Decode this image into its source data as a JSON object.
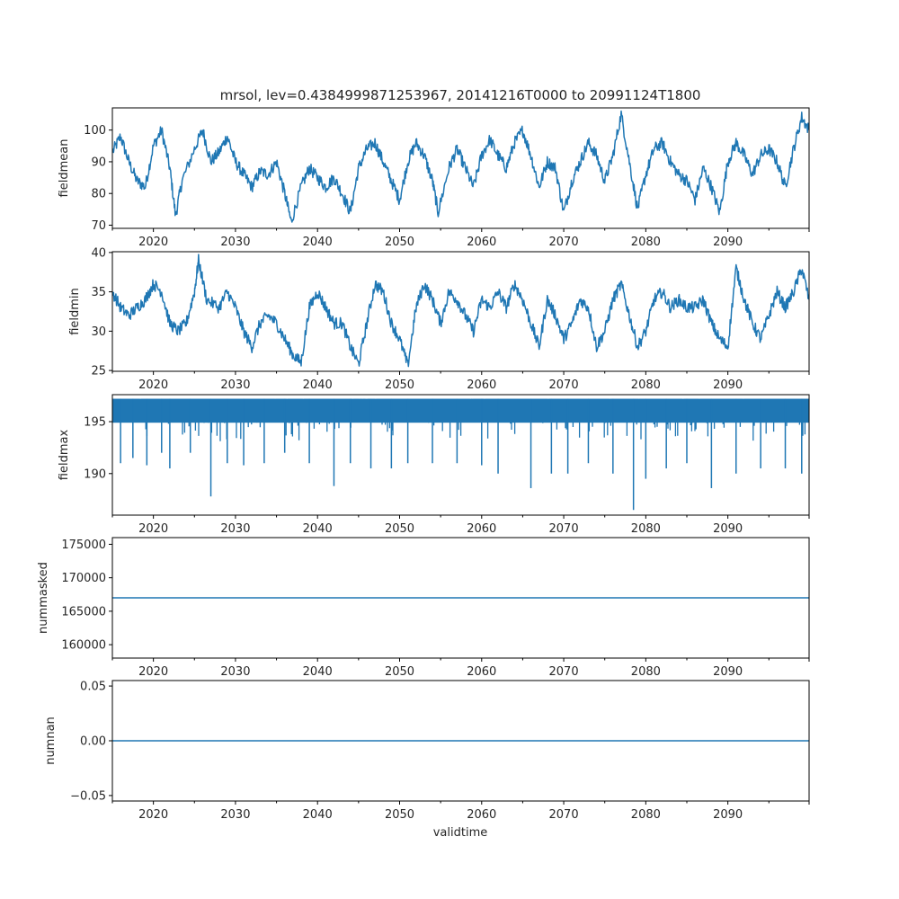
{
  "chart_data": {
    "type": "line",
    "title": "mrsol, lev=0.4384999871253967, 20141216T0000 to 20991124T1800",
    "xlabel": "validtime",
    "x_range": [
      2015.0,
      2099.9
    ],
    "x_ticks": [
      2020,
      2030,
      2040,
      2050,
      2060,
      2070,
      2080,
      2090
    ],
    "x_tick_labels": [
      "2020",
      "2030",
      "2040",
      "2050",
      "2060",
      "2070",
      "2080",
      "2090"
    ],
    "line_color": "#1f77b4",
    "panels": [
      {
        "ylabel": "fieldmean",
        "ylim": [
          69,
          107
        ],
        "yticks": [
          70,
          80,
          90,
          100
        ],
        "ytick_labels": [
          "70",
          "80",
          "90",
          "100"
        ],
        "points": [
          [
            2015.0,
            93
          ],
          [
            2016.0,
            98
          ],
          [
            2017.0,
            90
          ],
          [
            2018.0,
            84
          ],
          [
            2019.0,
            82
          ],
          [
            2020.0,
            95
          ],
          [
            2021.0,
            100
          ],
          [
            2022.0,
            88
          ],
          [
            2022.7,
            73
          ],
          [
            2023.5,
            84
          ],
          [
            2025.0,
            94
          ],
          [
            2026.0,
            100
          ],
          [
            2027.0,
            90
          ],
          [
            2028.0,
            93
          ],
          [
            2029.0,
            98
          ],
          [
            2030.0,
            90
          ],
          [
            2031.0,
            86
          ],
          [
            2032.0,
            82
          ],
          [
            2033.0,
            87
          ],
          [
            2034.0,
            86
          ],
          [
            2035.0,
            90
          ],
          [
            2036.0,
            80
          ],
          [
            2036.8,
            71
          ],
          [
            2038.0,
            82
          ],
          [
            2039.0,
            88
          ],
          [
            2040.0,
            85
          ],
          [
            2041.0,
            82
          ],
          [
            2042.0,
            85
          ],
          [
            2043.0,
            80
          ],
          [
            2044.0,
            74
          ],
          [
            2045.0,
            88
          ],
          [
            2046.0,
            94
          ],
          [
            2047.0,
            96
          ],
          [
            2048.0,
            90
          ],
          [
            2049.0,
            84
          ],
          [
            2050.0,
            78
          ],
          [
            2051.0,
            90
          ],
          [
            2052.0,
            96
          ],
          [
            2053.0,
            92
          ],
          [
            2054.0,
            84
          ],
          [
            2054.7,
            74
          ],
          [
            2056.0,
            88
          ],
          [
            2057.0,
            94
          ],
          [
            2058.0,
            88
          ],
          [
            2059.0,
            82
          ],
          [
            2060.0,
            92
          ],
          [
            2061.0,
            97
          ],
          [
            2062.0,
            92
          ],
          [
            2063.0,
            88
          ],
          [
            2064.0,
            96
          ],
          [
            2065.0,
            100
          ],
          [
            2066.0,
            92
          ],
          [
            2067.0,
            82
          ],
          [
            2068.0,
            90
          ],
          [
            2069.0,
            88
          ],
          [
            2070.0,
            74
          ],
          [
            2071.0,
            84
          ],
          [
            2072.0,
            90
          ],
          [
            2073.0,
            96
          ],
          [
            2074.0,
            92
          ],
          [
            2075.0,
            84
          ],
          [
            2076.0,
            92
          ],
          [
            2077.0,
            105
          ],
          [
            2078.0,
            90
          ],
          [
            2079.0,
            75
          ],
          [
            2080.0,
            86
          ],
          [
            2081.0,
            94
          ],
          [
            2082.0,
            96
          ],
          [
            2083.0,
            90
          ],
          [
            2084.0,
            86
          ],
          [
            2085.0,
            84
          ],
          [
            2086.0,
            78
          ],
          [
            2087.0,
            88
          ],
          [
            2088.0,
            82
          ],
          [
            2089.0,
            74
          ],
          [
            2090.0,
            90
          ],
          [
            2091.0,
            96
          ],
          [
            2092.0,
            92
          ],
          [
            2093.0,
            86
          ],
          [
            2094.0,
            92
          ],
          [
            2095.0,
            94
          ],
          [
            2096.0,
            90
          ],
          [
            2097.0,
            82
          ],
          [
            2098.0,
            94
          ],
          [
            2099.0,
            104
          ],
          [
            2099.9,
            100
          ]
        ]
      },
      {
        "ylabel": "fieldmin",
        "ylim": [
          24.9,
          40.1
        ],
        "yticks": [
          25,
          30,
          35,
          40
        ],
        "ytick_labels": [
          "25",
          "30",
          "35",
          "40"
        ],
        "points": [
          [
            2015.0,
            35
          ],
          [
            2016.0,
            33
          ],
          [
            2017.0,
            32
          ],
          [
            2018.0,
            33
          ],
          [
            2019.0,
            34
          ],
          [
            2020.0,
            36
          ],
          [
            2021.0,
            35
          ],
          [
            2022.0,
            31
          ],
          [
            2023.0,
            30
          ],
          [
            2024.0,
            31
          ],
          [
            2025.0,
            35
          ],
          [
            2025.5,
            39
          ],
          [
            2026.5,
            34
          ],
          [
            2028.0,
            33
          ],
          [
            2029.0,
            35
          ],
          [
            2030.0,
            33
          ],
          [
            2031.0,
            30
          ],
          [
            2032.0,
            28
          ],
          [
            2033.0,
            31
          ],
          [
            2034.0,
            32
          ],
          [
            2035.0,
            31
          ],
          [
            2036.0,
            29
          ],
          [
            2037.0,
            27
          ],
          [
            2038.0,
            26
          ],
          [
            2039.0,
            33
          ],
          [
            2040.0,
            35
          ],
          [
            2041.0,
            33
          ],
          [
            2042.0,
            31
          ],
          [
            2043.0,
            31
          ],
          [
            2044.0,
            28
          ],
          [
            2045.0,
            25.8
          ],
          [
            2046.0,
            31
          ],
          [
            2047.0,
            36
          ],
          [
            2048.0,
            35
          ],
          [
            2049.0,
            31
          ],
          [
            2050.0,
            29
          ],
          [
            2051.0,
            25.6
          ],
          [
            2052.0,
            33
          ],
          [
            2053.0,
            36
          ],
          [
            2054.0,
            34
          ],
          [
            2055.0,
            31
          ],
          [
            2056.0,
            35
          ],
          [
            2057.0,
            34
          ],
          [
            2058.0,
            32
          ],
          [
            2059.0,
            30
          ],
          [
            2060.0,
            34
          ],
          [
            2061.0,
            33
          ],
          [
            2062.0,
            35
          ],
          [
            2063.0,
            33
          ],
          [
            2064.0,
            36
          ],
          [
            2065.0,
            34
          ],
          [
            2066.0,
            31
          ],
          [
            2067.0,
            28
          ],
          [
            2068.0,
            34
          ],
          [
            2069.0,
            32
          ],
          [
            2070.0,
            29
          ],
          [
            2071.0,
            31
          ],
          [
            2072.0,
            34
          ],
          [
            2073.0,
            33
          ],
          [
            2074.0,
            28
          ],
          [
            2075.0,
            30
          ],
          [
            2076.0,
            34
          ],
          [
            2077.0,
            36
          ],
          [
            2078.0,
            32
          ],
          [
            2079.0,
            28
          ],
          [
            2080.0,
            30
          ],
          [
            2081.0,
            34
          ],
          [
            2082.0,
            35
          ],
          [
            2083.0,
            33
          ],
          [
            2084.0,
            34
          ],
          [
            2085.0,
            33
          ],
          [
            2086.0,
            33
          ],
          [
            2087.0,
            34
          ],
          [
            2088.0,
            31
          ],
          [
            2089.0,
            29
          ],
          [
            2090.0,
            28
          ],
          [
            2091.0,
            38
          ],
          [
            2092.0,
            34
          ],
          [
            2093.0,
            31
          ],
          [
            2094.0,
            29
          ],
          [
            2095.0,
            32
          ],
          [
            2096.0,
            35
          ],
          [
            2097.0,
            33
          ],
          [
            2098.0,
            35
          ],
          [
            2099.0,
            38
          ],
          [
            2099.9,
            34
          ]
        ]
      },
      {
        "ylabel": "fieldmax",
        "ylim": [
          186,
          197.6
        ],
        "yticks": [
          190,
          195
        ],
        "ytick_labels": [
          "190",
          "195"
        ],
        "max_value": 197.2,
        "spikes": [
          [
            2016.0,
            191.0
          ],
          [
            2017.5,
            191.5
          ],
          [
            2019.2,
            190.8
          ],
          [
            2021.0,
            192.0
          ],
          [
            2022.0,
            190.5
          ],
          [
            2024.5,
            192.0
          ],
          [
            2027.0,
            187.8
          ],
          [
            2029.0,
            191.0
          ],
          [
            2031.0,
            190.8
          ],
          [
            2033.5,
            191.0
          ],
          [
            2036.0,
            192.0
          ],
          [
            2039.0,
            191.0
          ],
          [
            2042.0,
            188.8
          ],
          [
            2044.0,
            191.0
          ],
          [
            2046.5,
            190.5
          ],
          [
            2049.0,
            190.5
          ],
          [
            2051.0,
            191.0
          ],
          [
            2054.0,
            191.0
          ],
          [
            2057.0,
            191.0
          ],
          [
            2060.0,
            190.8
          ],
          [
            2062.0,
            190.0
          ],
          [
            2066.0,
            188.6
          ],
          [
            2068.5,
            190.0
          ],
          [
            2070.5,
            190.0
          ],
          [
            2073.0,
            191.0
          ],
          [
            2076.0,
            190.0
          ],
          [
            2078.5,
            186.5
          ],
          [
            2080.0,
            189.5
          ],
          [
            2082.5,
            190.5
          ],
          [
            2085.0,
            191.0
          ],
          [
            2088.0,
            188.6
          ],
          [
            2091.0,
            190.0
          ],
          [
            2094.0,
            190.5
          ],
          [
            2097.0,
            190.5
          ],
          [
            2099.0,
            190.0
          ]
        ],
        "dense_min": 193.5
      },
      {
        "ylabel": "nummasked",
        "ylim": [
          158000,
          176000
        ],
        "yticks": [
          160000,
          165000,
          170000,
          175000
        ],
        "ytick_labels": [
          "160000",
          "165000",
          "170000",
          "175000"
        ],
        "constant": 167000
      },
      {
        "ylabel": "numnan",
        "ylim": [
          -0.055,
          0.055
        ],
        "yticks": [
          -0.05,
          0.0,
          0.05
        ],
        "ytick_labels": [
          "−0.05",
          "0.00",
          "0.05"
        ],
        "constant": 0.0
      }
    ]
  }
}
